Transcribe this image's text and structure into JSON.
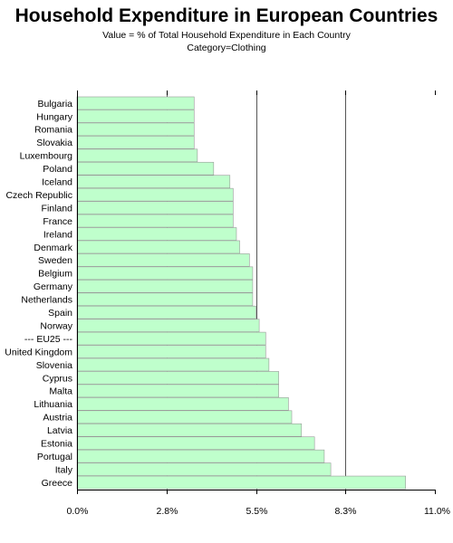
{
  "chart_data": {
    "type": "bar",
    "orientation": "horizontal",
    "title": "Household Expenditure in European Countries",
    "subtitle": "Value = % of Total Household Expenditure in Each Country",
    "subtitle2": "Category=Clothing",
    "categories": [
      "Bulgaria",
      "Hungary",
      "Romania",
      "Slovakia",
      "Luxembourg",
      "Poland",
      "Iceland",
      "Czech Republic",
      "Finland",
      "France",
      "Ireland",
      "Denmark",
      "Sweden",
      "Belgium",
      "Germany",
      "Netherlands",
      "Spain",
      "Norway",
      "--- EU25 ---",
      "United Kingdom",
      "Slovenia",
      "Cyprus",
      "Malta",
      "Lithuania",
      "Austria",
      "Latvia",
      "Estonia",
      "Portugal",
      "Italy",
      "Greece"
    ],
    "values": [
      3.6,
      3.6,
      3.6,
      3.6,
      3.7,
      4.2,
      4.7,
      4.8,
      4.8,
      4.8,
      4.9,
      5.0,
      5.3,
      5.4,
      5.4,
      5.4,
      5.5,
      5.6,
      5.8,
      5.8,
      5.9,
      6.2,
      6.2,
      6.5,
      6.6,
      6.9,
      7.3,
      7.6,
      7.8,
      10.1
    ],
    "xlim": [
      0,
      11.0
    ],
    "xticks": [
      "0.0%",
      "2.8%",
      "5.5%",
      "8.3%",
      "11.0%"
    ],
    "xtick_values": [
      0,
      2.75,
      5.5,
      8.25,
      11.0
    ],
    "bar_color": "#bfffcc",
    "bar_edge": "#999999",
    "grid": true
  }
}
